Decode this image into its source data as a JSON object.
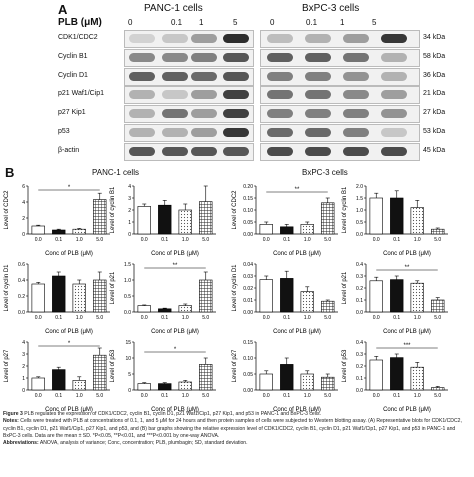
{
  "panelA": {
    "letter": "A",
    "plb_label": "PLB (μM)",
    "panc_title": "PANC-1 cells",
    "bxpc_title": "BxPC-3 cells",
    "doses": [
      "0",
      "0.1",
      "1",
      "5"
    ],
    "rows": [
      {
        "label": "CDK1/CDC2",
        "kda": "34 kDa"
      },
      {
        "label": "Cyclin B1",
        "kda": "58 kDa"
      },
      {
        "label": "Cyclin D1",
        "kda": "36 kDa"
      },
      {
        "label": "p21 Waf1/Cip1",
        "kda": "21 kDa"
      },
      {
        "label": "p27 Kip1",
        "kda": "27 kDa"
      },
      {
        "label": "p53",
        "kda": "53 kDa"
      },
      {
        "label": "β-actin",
        "kda": "45 kDa"
      }
    ]
  },
  "panelB": {
    "letter": "B",
    "panc_title": "PANC-1 cells",
    "bxpc_title": "BxPC-3 cells"
  },
  "chart_data": [
    {
      "type": "bar",
      "group": "PANC-1",
      "categories": [
        "0.0",
        "0.1",
        "1.0",
        "5.0"
      ],
      "values": [
        1.0,
        0.5,
        0.6,
        4.3
      ],
      "errors": [
        0.1,
        0.1,
        0.1,
        0.8
      ],
      "ylim": [
        0,
        6
      ],
      "yticks": [
        "0",
        "2",
        "4",
        "6"
      ],
      "ylabel": "Level of CDC2",
      "xlabel": "Conc of PLB (μM)",
      "sig": "*"
    },
    {
      "type": "bar",
      "group": "PANC-1",
      "categories": [
        "0.0",
        "0.1",
        "1.0",
        "5.0"
      ],
      "values": [
        2.3,
        2.4,
        2.0,
        2.7
      ],
      "errors": [
        0.2,
        0.4,
        0.5,
        1.3
      ],
      "ylim": [
        0,
        4
      ],
      "yticks": [
        "0",
        "1",
        "2",
        "3",
        "4"
      ],
      "ylabel": "Level of cyclin B1",
      "xlabel": "Conc of PLB (μM)",
      "sig": ""
    },
    {
      "type": "bar",
      "group": "BxPC-3",
      "categories": [
        "0.0",
        "0.1",
        "1.0",
        "5.0"
      ],
      "values": [
        0.04,
        0.03,
        0.04,
        0.13
      ],
      "errors": [
        0.01,
        0.01,
        0.01,
        0.02
      ],
      "ylim": [
        0,
        0.2
      ],
      "yticks": [
        "0.00",
        "0.05",
        "0.10",
        "0.15",
        "0.20"
      ],
      "ylabel": "Level of CDC2",
      "xlabel": "Conc of PLB (μM)",
      "sig": "**"
    },
    {
      "type": "bar",
      "group": "BxPC-3",
      "categories": [
        "0.0",
        "0.1",
        "1.0",
        "5.0"
      ],
      "values": [
        1.5,
        1.5,
        1.1,
        0.2
      ],
      "errors": [
        0.2,
        0.3,
        0.3,
        0.05
      ],
      "ylim": [
        0,
        2
      ],
      "yticks": [
        "0.0",
        "0.5",
        "1.0",
        "1.5",
        "2.0"
      ],
      "ylabel": "Level of cyclin B1",
      "xlabel": "Conc of PLB (μM)",
      "sig": ""
    },
    {
      "type": "bar",
      "group": "PANC-1",
      "categories": [
        "0.0",
        "0.1",
        "1.0",
        "5.0"
      ],
      "values": [
        0.35,
        0.45,
        0.35,
        0.4
      ],
      "errors": [
        0.02,
        0.05,
        0.05,
        0.1
      ],
      "ylim": [
        0,
        0.6
      ],
      "yticks": [
        "0.0",
        "0.2",
        "0.4",
        "0.6"
      ],
      "ylabel": "Level of cyclin D1",
      "xlabel": "Conc of PLB (μM)",
      "sig": ""
    },
    {
      "type": "bar",
      "group": "PANC-1",
      "categories": [
        "0.0",
        "0.1",
        "1.0",
        "5.0"
      ],
      "values": [
        0.2,
        0.1,
        0.2,
        1.0
      ],
      "errors": [
        0.02,
        0.02,
        0.05,
        0.25
      ],
      "ylim": [
        0,
        1.5
      ],
      "yticks": [
        "0.0",
        "0.5",
        "1.0",
        "1.5"
      ],
      "ylabel": "Level of p21",
      "xlabel": "Conc of PLB (μM)",
      "sig": "**"
    },
    {
      "type": "bar",
      "group": "BxPC-3",
      "categories": [
        "0.0",
        "0.1",
        "1.0",
        "5.0"
      ],
      "values": [
        0.027,
        0.028,
        0.017,
        0.009
      ],
      "errors": [
        0.003,
        0.006,
        0.004,
        0.001
      ],
      "ylim": [
        0,
        0.04
      ],
      "yticks": [
        "0.00",
        "0.01",
        "0.02",
        "0.03",
        "0.04"
      ],
      "ylabel": "Level of cyclin D1",
      "xlabel": "Conc of PLB (μM)",
      "sig": ""
    },
    {
      "type": "bar",
      "group": "BxPC-3",
      "categories": [
        "0.0",
        "0.1",
        "1.0",
        "5.0"
      ],
      "values": [
        0.26,
        0.27,
        0.24,
        0.1
      ],
      "errors": [
        0.03,
        0.03,
        0.02,
        0.02
      ],
      "ylim": [
        0,
        0.4
      ],
      "yticks": [
        "0.0",
        "0.1",
        "0.2",
        "0.3",
        "0.4"
      ],
      "ylabel": "Level of p21",
      "xlabel": "Conc of PLB (μM)",
      "sig": "**"
    },
    {
      "type": "bar",
      "group": "PANC-1",
      "categories": [
        "0.0",
        "0.1",
        "1.0",
        "5.0"
      ],
      "values": [
        1.0,
        1.7,
        0.8,
        2.9
      ],
      "errors": [
        0.1,
        0.2,
        0.3,
        0.6
      ],
      "ylim": [
        0,
        4
      ],
      "yticks": [
        "0",
        "1",
        "2",
        "3",
        "4"
      ],
      "ylabel": "Level of p27",
      "xlabel": "Conc of PLB (μM)",
      "sig": "*"
    },
    {
      "type": "bar",
      "group": "PANC-1",
      "categories": [
        "0.0",
        "0.1",
        "1.0",
        "5.0"
      ],
      "values": [
        2.0,
        2.0,
        2.5,
        8.0
      ],
      "errors": [
        0.3,
        0.3,
        0.5,
        2.0
      ],
      "ylim": [
        0,
        15
      ],
      "yticks": [
        "0",
        "5",
        "10",
        "15"
      ],
      "ylabel": "Level of p53",
      "xlabel": "Conc of PLB (μM)",
      "sig": "*"
    },
    {
      "type": "bar",
      "group": "BxPC-3",
      "categories": [
        "0.0",
        "0.1",
        "1.0",
        "5.0"
      ],
      "values": [
        0.05,
        0.08,
        0.05,
        0.04
      ],
      "errors": [
        0.01,
        0.02,
        0.01,
        0.01
      ],
      "ylim": [
        0,
        0.15
      ],
      "yticks": [
        "0.00",
        "0.05",
        "0.10",
        "0.15"
      ],
      "ylabel": "Level of p27",
      "xlabel": "Conc of PLB (μM)",
      "sig": ""
    },
    {
      "type": "bar",
      "group": "BxPC-3",
      "categories": [
        "0.0",
        "0.1",
        "1.0",
        "5.0"
      ],
      "values": [
        0.25,
        0.27,
        0.19,
        0.02
      ],
      "errors": [
        0.03,
        0.03,
        0.04,
        0.01
      ],
      "ylim": [
        0,
        0.4
      ],
      "yticks": [
        "0.0",
        "0.1",
        "0.2",
        "0.3",
        "0.4"
      ],
      "ylabel": "Level of p53",
      "xlabel": "Conc of PLB (μM)",
      "sig": "***"
    }
  ],
  "caption": {
    "fig_label": "Figure 3",
    "fig_title": "PLB regulates the expression of CDK1/CDC2, cyclin B1, cyclin D1, p21 Waf1/Cip1, p27 Kip1, and p53 in PANC-1 and BxPC-3 cells.",
    "notes_label": "Notes:",
    "notes_text": "Cells were treated with PLB at concentrations of 0.1, 1, and 5 μM for 24 hours and then protein samples of cells were subjected to Western blotting assay. (A) Representative blots for CDK1/CDC2, cyclin B1, cyclin D1, p21 Waf1/Cip1, p27 Kip1, and p53, and (B) bar graphs showing the relative expression level of CDK1/CDC2, cyclin B1, cyclin D1, p21 Waf1/Cip1, p27 Kip1, and p53 in PANC-1 and BxPC-3 cells. Data are the mean ± SD. *P<0.05, **P<0.01, and ***P<0.001 by one-way ANOVA.",
    "abbr_label": "Abbreviations:",
    "abbr_text": "ANOVA, analysis of variance; Conc, concentration; PLB, plumbagin; SD, standard deviation."
  }
}
